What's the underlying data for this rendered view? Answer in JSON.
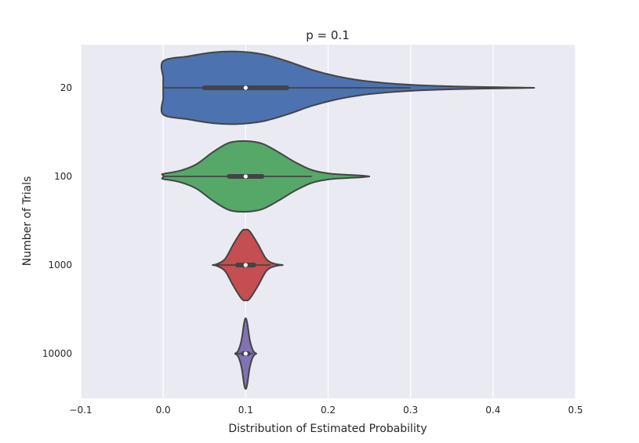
{
  "chart_data": {
    "type": "violin",
    "orientation": "horizontal",
    "title": "p = 0.1",
    "xlabel": "Distribution of Estimated Probability",
    "ylabel": "Number of Trials",
    "xlim": [
      -0.1,
      0.5
    ],
    "xticks": [
      -0.1,
      0.0,
      0.1,
      0.2,
      0.3,
      0.4,
      0.5
    ],
    "xtick_labels": [
      "−0.1",
      "0.0",
      "0.1",
      "0.2",
      "0.3",
      "0.4",
      "0.5"
    ],
    "grid": "vertical",
    "background": "#eaeaf2",
    "categories": [
      "20",
      "100",
      "1000",
      "10000"
    ],
    "series": [
      {
        "category": "20",
        "color": "#4c72b0",
        "min": 0.0,
        "q1": 0.05,
        "median": 0.1,
        "q3": 0.15,
        "whisker_max": 0.3,
        "max": 0.45,
        "profile": [
          [
            0.0,
            0.25
          ],
          [
            0.0,
            0.62
          ],
          [
            0.03,
            0.73
          ],
          [
            0.06,
            0.82
          ],
          [
            0.09,
            0.84
          ],
          [
            0.12,
            0.78
          ],
          [
            0.15,
            0.62
          ],
          [
            0.18,
            0.42
          ],
          [
            0.21,
            0.27
          ],
          [
            0.24,
            0.17
          ],
          [
            0.27,
            0.11
          ],
          [
            0.3,
            0.07
          ],
          [
            0.33,
            0.045
          ],
          [
            0.36,
            0.03
          ],
          [
            0.39,
            0.018
          ],
          [
            0.42,
            0.01
          ],
          [
            0.45,
            0.0
          ]
        ]
      },
      {
        "category": "100",
        "color": "#55a868",
        "min": 0.0,
        "q1": 0.08,
        "median": 0.1,
        "q3": 0.12,
        "whisker_max": 0.18,
        "max": 0.25,
        "profile": [
          [
            0.0,
            0.03
          ],
          [
            0.0,
            0.06
          ],
          [
            0.02,
            0.13
          ],
          [
            0.04,
            0.28
          ],
          [
            0.06,
            0.56
          ],
          [
            0.08,
            0.78
          ],
          [
            0.1,
            0.82
          ],
          [
            0.12,
            0.76
          ],
          [
            0.14,
            0.56
          ],
          [
            0.16,
            0.33
          ],
          [
            0.18,
            0.15
          ],
          [
            0.2,
            0.07
          ],
          [
            0.22,
            0.04
          ],
          [
            0.24,
            0.02
          ],
          [
            0.25,
            0.0
          ]
        ]
      },
      {
        "category": "1000",
        "color": "#c44e52",
        "min": 0.06,
        "q1": 0.09,
        "median": 0.1,
        "q3": 0.11,
        "whisker_max": 0.13,
        "max": 0.145,
        "profile": [
          [
            0.06,
            0.0
          ],
          [
            0.065,
            0.02
          ],
          [
            0.075,
            0.14
          ],
          [
            0.085,
            0.48
          ],
          [
            0.095,
            0.78
          ],
          [
            0.1,
            0.82
          ],
          [
            0.105,
            0.78
          ],
          [
            0.115,
            0.48
          ],
          [
            0.125,
            0.14
          ],
          [
            0.135,
            0.03
          ],
          [
            0.145,
            0.0
          ]
        ]
      },
      {
        "category": "10000",
        "color": "#8172b2",
        "min": 0.087,
        "q1": 0.097,
        "median": 0.1,
        "q3": 0.103,
        "whisker_max": 0.109,
        "max": 0.113,
        "profile": [
          [
            0.087,
            0.0
          ],
          [
            0.091,
            0.07
          ],
          [
            0.095,
            0.32
          ],
          [
            0.098,
            0.7
          ],
          [
            0.1,
            0.82
          ],
          [
            0.102,
            0.7
          ],
          [
            0.105,
            0.32
          ],
          [
            0.109,
            0.07
          ],
          [
            0.113,
            0.0
          ]
        ]
      }
    ]
  }
}
